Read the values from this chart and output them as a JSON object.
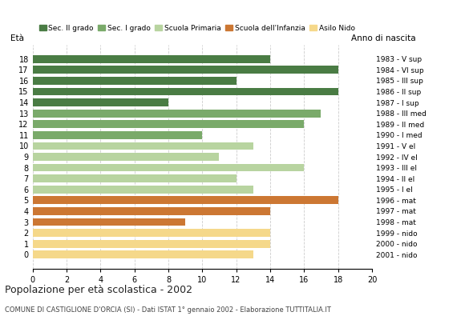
{
  "ages": [
    18,
    17,
    16,
    15,
    14,
    13,
    12,
    11,
    10,
    9,
    8,
    7,
    6,
    5,
    4,
    3,
    2,
    1,
    0
  ],
  "values": [
    14,
    18,
    12,
    18,
    8,
    17,
    16,
    10,
    13,
    11,
    16,
    12,
    13,
    18,
    14,
    9,
    14,
    14,
    13
  ],
  "categories": [
    "Sec. II grado",
    "Sec. II grado",
    "Sec. II grado",
    "Sec. II grado",
    "Sec. II grado",
    "Sec. I grado",
    "Sec. I grado",
    "Sec. I grado",
    "Scuola Primaria",
    "Scuola Primaria",
    "Scuola Primaria",
    "Scuola Primaria",
    "Scuola Primaria",
    "Scuola dell'Infanzia",
    "Scuola dell'Infanzia",
    "Scuola dell'Infanzia",
    "Asilo Nido",
    "Asilo Nido",
    "Asilo Nido"
  ],
  "right_labels": [
    "1983 - V sup",
    "1984 - VI sup",
    "1985 - III sup",
    "1986 - II sup",
    "1987 - I sup",
    "1988 - III med",
    "1989 - II med",
    "1990 - I med",
    "1991 - V el",
    "1992 - IV el",
    "1993 - III el",
    "1994 - II el",
    "1995 - I el",
    "1996 - mat",
    "1997 - mat",
    "1998 - mat",
    "1999 - nido",
    "2000 - nido",
    "2001 - nido"
  ],
  "colors": {
    "Sec. II grado": "#4a7c44",
    "Sec. I grado": "#7aaa6a",
    "Scuola Primaria": "#b8d4a0",
    "Scuola dell'Infanzia": "#cc7733",
    "Asilo Nido": "#f5d88a"
  },
  "legend_order": [
    "Sec. II grado",
    "Sec. I grado",
    "Scuola Primaria",
    "Scuola dell'Infanzia",
    "Asilo Nido"
  ],
  "title": "Popolazione per età scolastica - 2002",
  "subtitle": "COMUNE DI CASTIGLIONE D'ORCIA (SI) - Dati ISTAT 1° gennaio 2002 - Elaborazione TUTTITALIA.IT",
  "label_eta": "Età",
  "label_anno": "Anno di nascita",
  "xlim": [
    0,
    20
  ],
  "xticks": [
    0,
    2,
    4,
    6,
    8,
    10,
    12,
    14,
    16,
    18,
    20
  ],
  "background_color": "#ffffff",
  "bar_height": 0.72
}
